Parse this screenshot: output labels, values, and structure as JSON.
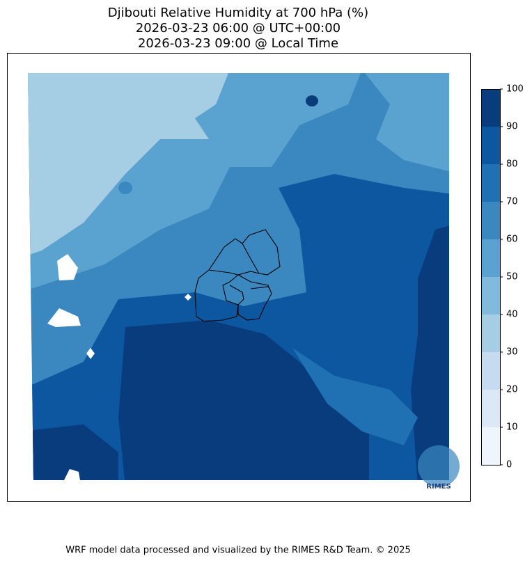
{
  "title": [
    "Djibouti Relative Humidity at 700 hPa (%)",
    "2026-03-23 06:00 @ UTC+00:00",
    "2026-03-23 09:00 @ Local Time"
  ],
  "colorbar": {
    "levels": [
      0,
      10,
      20,
      30,
      40,
      50,
      60,
      70,
      80,
      90,
      100
    ],
    "colors": [
      "#eef5fc",
      "#dbe9f6",
      "#c6dbef",
      "#a5cde3",
      "#82badb",
      "#5aa2cf",
      "#3b88c0",
      "#2070b4",
      "#0d57a0",
      "#083c7d"
    ]
  },
  "logo": "RIMES",
  "footer": "WRF model data processed and visualized by the RIMES R&D Team. © 2025"
}
